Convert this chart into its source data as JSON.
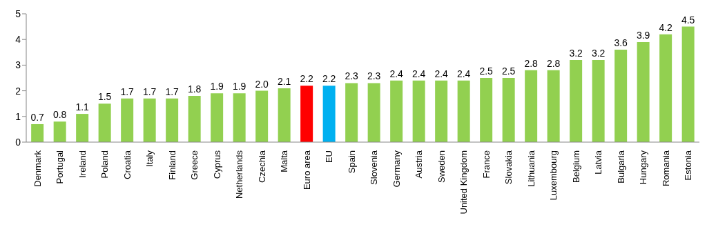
{
  "chart_data": {
    "type": "bar",
    "categories": [
      "Denmark",
      "Portugal",
      "Ireland",
      "Poland",
      "Croatia",
      "Italy",
      "Finland",
      "Greece",
      "Cyprus",
      "Netherlands",
      "Czechia",
      "Malta",
      "Euro area",
      "EU",
      "Spain",
      "Slovenia",
      "Germany",
      "Austria",
      "Sweden",
      "United Kingdom",
      "France",
      "Slovakia",
      "Lithuania",
      "Luxembourg",
      "Belgium",
      "Latvia",
      "Bulgaria",
      "Hungary",
      "Romania",
      "Estonia"
    ],
    "values": [
      0.7,
      0.8,
      1.1,
      1.5,
      1.7,
      1.7,
      1.7,
      1.8,
      1.9,
      1.9,
      2.0,
      2.1,
      2.2,
      2.2,
      2.3,
      2.3,
      2.4,
      2.4,
      2.4,
      2.4,
      2.5,
      2.5,
      2.8,
      2.8,
      3.2,
      3.2,
      3.6,
      3.9,
      4.2,
      4.5
    ],
    "value_labels": [
      "0.7",
      "0.8",
      "1.1",
      "1.5",
      "1.7",
      "1.7",
      "1.7",
      "1.8",
      "1.9",
      "1.9",
      "2.0",
      "2.1",
      "2.2",
      "2.2",
      "2.3",
      "2.3",
      "2.4",
      "2.4",
      "2.4",
      "2.4",
      "2.5",
      "2.5",
      "2.8",
      "2.8",
      "3.2",
      "3.2",
      "3.6",
      "3.9",
      "4.2",
      "4.5"
    ],
    "colors": [
      "#92d050",
      "#92d050",
      "#92d050",
      "#92d050",
      "#92d050",
      "#92d050",
      "#92d050",
      "#92d050",
      "#92d050",
      "#92d050",
      "#92d050",
      "#92d050",
      "#ff0000",
      "#00b0f0",
      "#92d050",
      "#92d050",
      "#92d050",
      "#92d050",
      "#92d050",
      "#92d050",
      "#92d050",
      "#92d050",
      "#92d050",
      "#92d050",
      "#92d050",
      "#92d050",
      "#92d050",
      "#92d050",
      "#92d050",
      "#92d050"
    ],
    "ylim": [
      0,
      5
    ],
    "yticks": [
      0,
      1,
      2,
      3,
      4,
      5
    ],
    "grid": false
  }
}
